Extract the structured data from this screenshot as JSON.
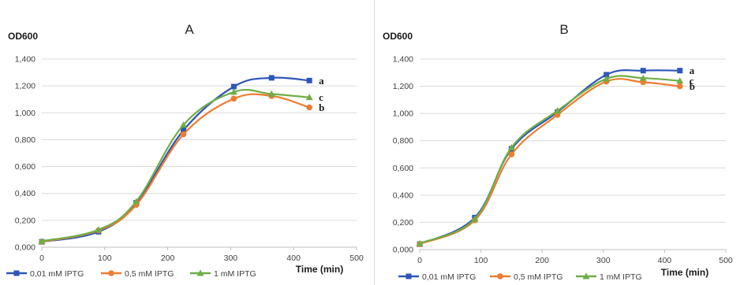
{
  "colors": {
    "axis": "#bfbfbf",
    "grid": "#d9d9d9",
    "text": "#404040"
  },
  "chart_data": [
    {
      "type": "line",
      "title": "A",
      "ylabel": "OD600",
      "xlabel": "Time (min)",
      "xlim": [
        0,
        500
      ],
      "ylim": [
        0,
        1.4
      ],
      "x_ticks": [
        "0",
        "100",
        "200",
        "300",
        "400",
        "500"
      ],
      "y_ticks": [
        "0,000",
        "0,200",
        "0,400",
        "0,600",
        "0,800",
        "1,000",
        "1,200",
        "1,400"
      ],
      "grid": "horizontal",
      "legend_position": "bottom",
      "series": [
        {
          "name": "0,01 mM IPTG",
          "color": "#2e55b8",
          "marker": "square",
          "label": "a",
          "points": [
            [
              0,
              0.04
            ],
            [
              90,
              0.115
            ],
            [
              150,
              0.33
            ],
            [
              225,
              0.87
            ],
            [
              305,
              1.195
            ],
            [
              365,
              1.26
            ],
            [
              425,
              1.24
            ]
          ]
        },
        {
          "name": "0,5 mM IPTG",
          "color": "#ed7d31",
          "marker": "circle",
          "label": "b",
          "points": [
            [
              0,
              0.04
            ],
            [
              90,
              0.125
            ],
            [
              150,
              0.315
            ],
            [
              225,
              0.84
            ],
            [
              305,
              1.105
            ],
            [
              365,
              1.125
            ],
            [
              425,
              1.04
            ]
          ]
        },
        {
          "name": "1 mM IPTG",
          "color": "#70ad47",
          "marker": "triangle",
          "label": "c",
          "points": [
            [
              0,
              0.045
            ],
            [
              90,
              0.13
            ],
            [
              150,
              0.34
            ],
            [
              225,
              0.91
            ],
            [
              305,
              1.155
            ],
            [
              365,
              1.14
            ],
            [
              425,
              1.115
            ]
          ]
        }
      ]
    },
    {
      "type": "line",
      "title": "B",
      "ylabel": "OD600",
      "xlabel": "Time (min)",
      "xlim": [
        0,
        500
      ],
      "ylim": [
        0,
        1.4
      ],
      "x_ticks": [
        "0",
        "100",
        "200",
        "300",
        "400",
        "500"
      ],
      "y_ticks": [
        "0,000",
        "0,200",
        "0,400",
        "0,600",
        "0,800",
        "1,000",
        "1,200",
        "1,400"
      ],
      "grid": "horizontal",
      "legend_position": "bottom",
      "series": [
        {
          "name": "0,01 mM IPTG",
          "color": "#2e55b8",
          "marker": "square",
          "label": "a",
          "points": [
            [
              0,
              0.04
            ],
            [
              90,
              0.235
            ],
            [
              150,
              0.74
            ],
            [
              225,
              1.01
            ],
            [
              305,
              1.285
            ],
            [
              365,
              1.315
            ],
            [
              425,
              1.315
            ]
          ]
        },
        {
          "name": "0,5 mM IPTG",
          "color": "#ed7d31",
          "marker": "circle",
          "label": "b",
          "points": [
            [
              0,
              0.04
            ],
            [
              90,
              0.215
            ],
            [
              150,
              0.7
            ],
            [
              225,
              0.99
            ],
            [
              305,
              1.235
            ],
            [
              365,
              1.23
            ],
            [
              425,
              1.2
            ]
          ]
        },
        {
          "name": "1 mM IPTG",
          "color": "#70ad47",
          "marker": "triangle",
          "label": "c",
          "points": [
            [
              0,
              0.045
            ],
            [
              90,
              0.225
            ],
            [
              150,
              0.75
            ],
            [
              225,
              1.02
            ],
            [
              305,
              1.255
            ],
            [
              365,
              1.26
            ],
            [
              425,
              1.24
            ]
          ]
        }
      ]
    }
  ]
}
